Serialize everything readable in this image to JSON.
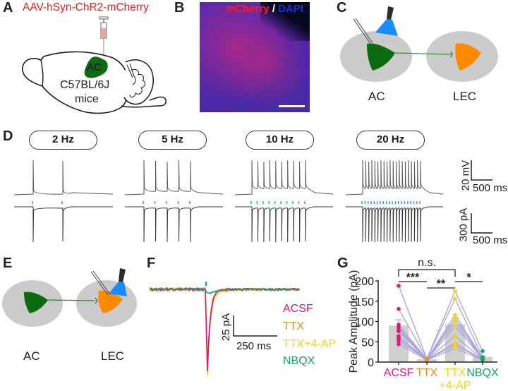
{
  "panels": {
    "A": {
      "letter": "A",
      "virus_label": "AAV-hSyn-ChR2-mCherry",
      "region_label": "AC",
      "strain_label": "C57BL/6J",
      "species_label": "mice",
      "colors": {
        "virus_text": "#e2231a",
        "region": "#0f6a14",
        "syringe": "#f4a29a"
      }
    },
    "B": {
      "letter": "B",
      "stain_red": "mCherry",
      "separator": "/",
      "stain_blue": "DAPI",
      "colors": {
        "red": "#ff1a1a",
        "blue": "#1b2fd6",
        "background": "#5a2aa8"
      }
    },
    "C": {
      "letter": "C",
      "left_region": "AC",
      "right_region": "LEC",
      "colors": {
        "presyn": "#0b6b0e",
        "postsyn": "#ff8a00",
        "light": "#1a8cff",
        "tissue": "#cbcbcb"
      }
    },
    "D": {
      "letter": "D",
      "frequencies": [
        {
          "label": "2 Hz",
          "pulses": 2
        },
        {
          "label": "5 Hz",
          "pulses": 5
        },
        {
          "label": "10 Hz",
          "pulses": 10
        },
        {
          "label": "20 Hz",
          "pulses": 20
        }
      ],
      "scale_bar_voltage": {
        "vertical": "20 mV",
        "horizontal": "500 ms"
      },
      "scale_bar_current": {
        "vertical": "300 pA",
        "horizontal": "500 ms"
      },
      "colors": {
        "trace": "#555555",
        "light_pulse": "#3aa0e8"
      }
    },
    "E": {
      "letter": "E",
      "left_region": "AC",
      "right_region": "LEC"
    },
    "F": {
      "letter": "F",
      "scale_bar": {
        "vertical": "25 pA",
        "horizontal": "250 ms"
      },
      "legend": [
        {
          "label": "ACSF",
          "color": "#e0157a"
        },
        {
          "label": "TTX",
          "color": "#f08a24"
        },
        {
          "label": "TTX+4-AP",
          "color": "#f5d21a"
        },
        {
          "label": "NBQX",
          "color": "#16a36b"
        }
      ]
    },
    "G": {
      "letter": "G"
    }
  },
  "chart_data": {
    "type": "bar",
    "title": "",
    "xlabel": "",
    "ylabel": "Peak Amplitude (pA)",
    "ylim": [
      0,
      200
    ],
    "yticks": [
      "0",
      "50",
      "100",
      "150",
      "200"
    ],
    "categories": [
      "ACSF",
      "TTX",
      "TTX\n+4-AP",
      "NBQX"
    ],
    "category_lines": [
      [
        "ACSF"
      ],
      [
        "TTX"
      ],
      [
        "TTX",
        "+4-AP"
      ],
      [
        "NBQX"
      ]
    ],
    "category_colors": [
      "#e0157a",
      "#f08a24",
      "#f5d21a",
      "#16a36b"
    ],
    "bar_color": "#cfcfcf",
    "paired_line_color": "#a9a3dc",
    "means": [
      90,
      7,
      93,
      13
    ],
    "sem": [
      14,
      1,
      15,
      2
    ],
    "paired_points": [
      [
        188,
        8,
        175,
        27
      ],
      [
        131,
        8,
        156,
        12
      ],
      [
        92,
        7,
        116,
        10
      ],
      [
        86,
        7,
        108,
        9
      ],
      [
        80,
        6,
        100,
        8
      ],
      [
        76,
        6,
        89,
        8
      ],
      [
        64,
        6,
        64,
        7
      ],
      [
        58,
        6,
        47,
        6
      ],
      [
        52,
        6,
        42,
        6
      ],
      [
        44,
        5,
        34,
        5
      ]
    ],
    "significance": [
      {
        "from": 0,
        "to": 2,
        "label": "n.s."
      },
      {
        "from": 0,
        "to": 1,
        "label": "***"
      },
      {
        "from": 1,
        "to": 2,
        "label": "**"
      },
      {
        "from": 2,
        "to": 3,
        "label": "*"
      }
    ],
    "grid": false,
    "legend": "none"
  }
}
